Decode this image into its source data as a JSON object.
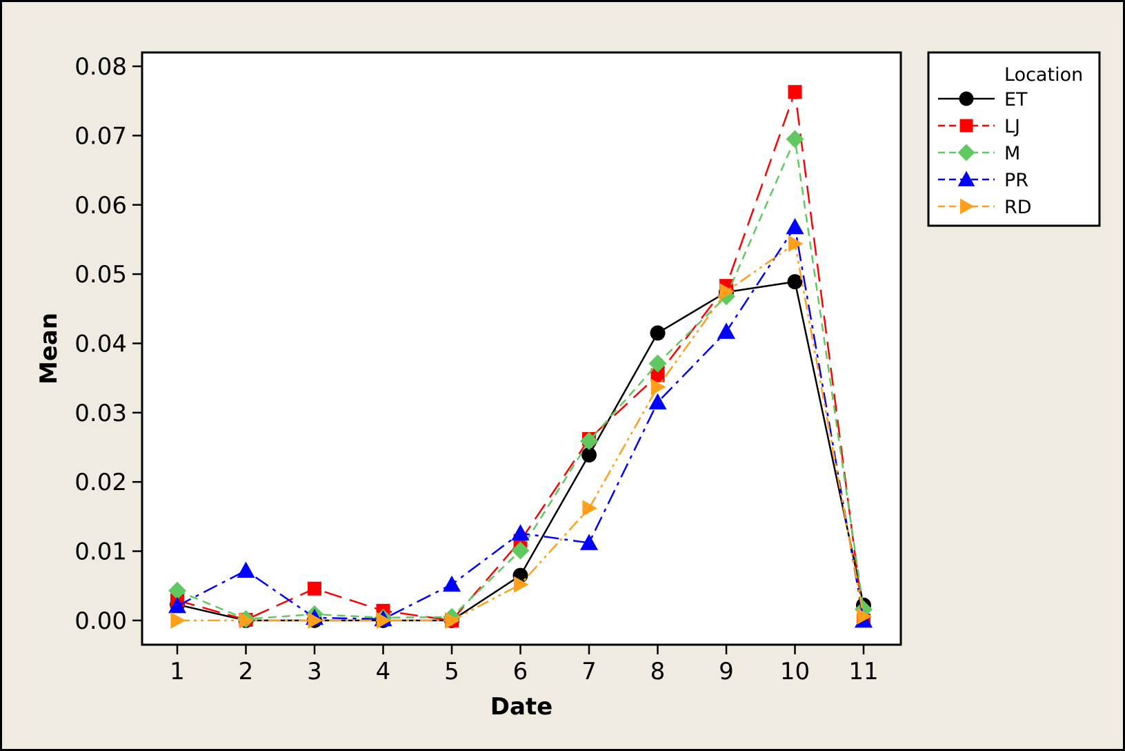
{
  "chart_data": {
    "type": "line",
    "title": "",
    "xlabel": "Date",
    "ylabel": "Mean",
    "x": [
      1,
      2,
      3,
      4,
      5,
      6,
      7,
      8,
      9,
      10,
      11
    ],
    "x_tick_labels": [
      "1",
      "2",
      "3",
      "4",
      "5",
      "6",
      "7",
      "8",
      "9",
      "10",
      "11"
    ],
    "ylim": [
      -0.0035,
      0.082
    ],
    "y_ticks": [
      0.0,
      0.01,
      0.02,
      0.03,
      0.04,
      0.05,
      0.06,
      0.07,
      0.08
    ],
    "y_tick_labels": [
      "0.00",
      "0.01",
      "0.02",
      "0.03",
      "0.04",
      "0.05",
      "0.06",
      "0.07",
      "0.08"
    ],
    "grid": false,
    "legend": {
      "title": "Location",
      "position": "right-top"
    },
    "background": "#efebe1",
    "series": [
      {
        "name": "ET",
        "color": "#000000",
        "marker": "circle",
        "dash": "solid",
        "values": [
          0.0023,
          0.0,
          0.0,
          0.0,
          0.0,
          0.0065,
          0.0239,
          0.0415,
          0.0474,
          0.0489,
          0.0022
        ]
      },
      {
        "name": "LJ",
        "color": "#ff0000",
        "marker": "square",
        "dash": "long-dash",
        "values": [
          0.0029,
          0.0001,
          0.0046,
          0.0014,
          0.0,
          0.0115,
          0.0262,
          0.0354,
          0.0483,
          0.0763,
          0.0
        ]
      },
      {
        "name": "M",
        "color": "#5fc85f",
        "marker": "diamond",
        "dash": "short-dash",
        "values": [
          0.0043,
          0.0002,
          0.0009,
          0.0004,
          0.0005,
          0.0101,
          0.0259,
          0.0371,
          0.0468,
          0.0695,
          0.0016
        ]
      },
      {
        "name": "PR",
        "color": "#0000ff",
        "marker": "triangle-up",
        "dash": "dash-dot",
        "values": [
          0.0021,
          0.0072,
          0.0004,
          0.0002,
          0.0052,
          0.0126,
          0.0112,
          0.0315,
          0.0417,
          0.0568,
          0.0
        ]
      },
      {
        "name": "RD",
        "color": "#ff9f1a",
        "marker": "triangle-right",
        "dash": "dash-dot-dot",
        "values": [
          0.0,
          0.0,
          0.0,
          0.0,
          0.0,
          0.0052,
          0.0162,
          0.0337,
          0.0475,
          0.0544,
          0.0006
        ]
      }
    ]
  }
}
